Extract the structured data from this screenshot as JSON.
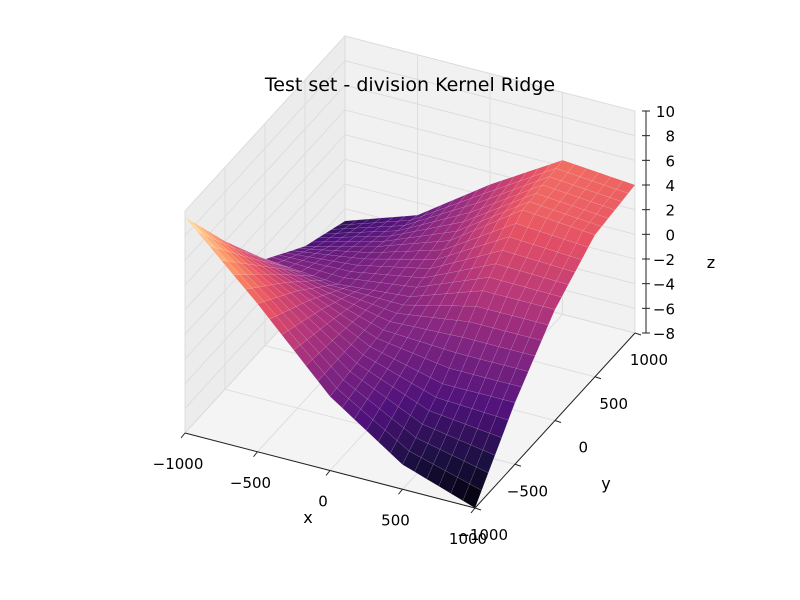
{
  "chart_data": {
    "type": "surface3d",
    "title": "Test set - division Kernel Ridge",
    "xlabel": "x",
    "ylabel": "y",
    "zlabel": "z",
    "x_ticks": [
      "−1000",
      "−500",
      "0",
      "500",
      "1000"
    ],
    "y_ticks": [
      "−1000",
      "−500",
      "0",
      "500",
      "1000"
    ],
    "z_ticks": [
      "−8",
      "−6",
      "−4",
      "−2",
      "0",
      "2",
      "4",
      "6",
      "8",
      "10"
    ],
    "xlim": [
      -1000,
      1000
    ],
    "ylim": [
      -1000,
      1000
    ],
    "zlim": [
      -8,
      10
    ],
    "colormap": "magma",
    "grid": true,
    "x": [
      -1000,
      -500,
      0,
      500,
      1000
    ],
    "y": [
      -1000,
      -500,
      0,
      500,
      1000
    ],
    "z": [
      [
        9.5,
        4.0,
        -1.0,
        -3.5,
        -5.0
      ],
      [
        4.0,
        1.5,
        -1.5,
        -2.0,
        -3.0
      ],
      [
        -2.0,
        -1.5,
        -1.0,
        0.0,
        1.0
      ],
      [
        -6.0,
        -3.0,
        1.0,
        4.0,
        4.5
      ],
      [
        -8.0,
        -3.0,
        1.0,
        3.5,
        4.0
      ]
    ]
  }
}
